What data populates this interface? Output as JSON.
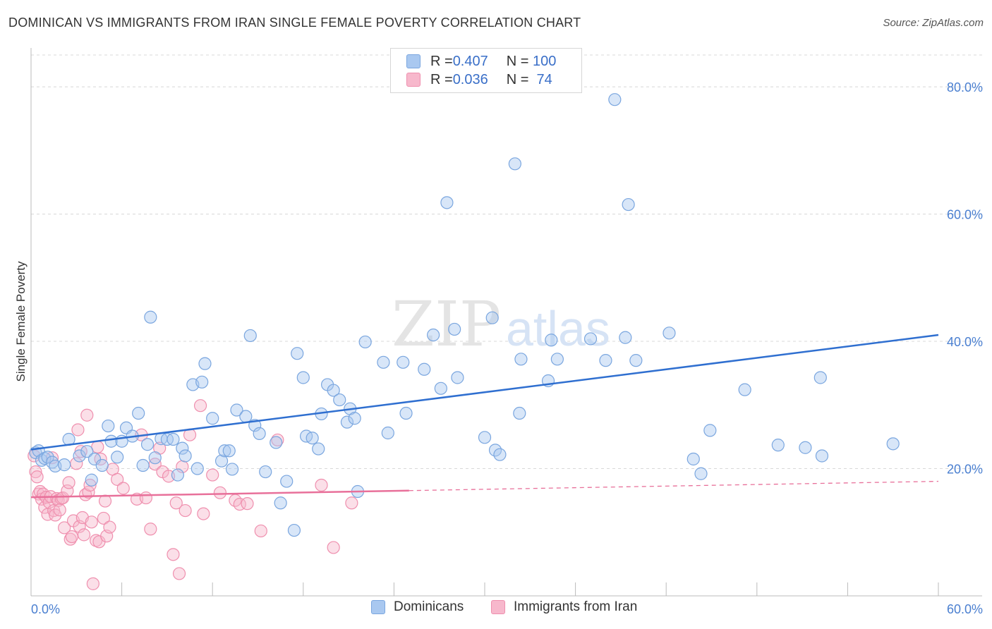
{
  "header": {
    "title": "DOMINICAN VS IMMIGRANTS FROM IRAN SINGLE FEMALE POVERTY CORRELATION CHART",
    "source": "Source: ZipAtlas.com"
  },
  "legend": {
    "rows": [
      {
        "r_label": "R = ",
        "r_value": "0.407",
        "n_label": "N = ",
        "n_value": "100",
        "color": "#a9c8f0"
      },
      {
        "r_label": "R = ",
        "r_value": "0.036",
        "n_label": "N = ",
        "n_value": " 74",
        "color": "#f7b8cc"
      }
    ]
  },
  "watermark": {
    "zip": "ZIP",
    "atlas": "atlas"
  },
  "colors": {
    "blue_fill": "#a9c8f0",
    "blue_stroke": "#7aa6df",
    "blue_line": "#2f6fd0",
    "pink_fill": "#f7b8cc",
    "pink_stroke": "#ef8fae",
    "pink_line": "#e8709a",
    "grid": "#d8d8d8",
    "tick_label": "#4a7fd0"
  },
  "chart_data": {
    "type": "scatter",
    "title": "DOMINICAN VS IMMIGRANTS FROM IRAN SINGLE FEMALE POVERTY CORRELATION CHART",
    "ylabel": "Single Female Poverty",
    "xlim": [
      0,
      60
    ],
    "ylim": [
      0,
      85
    ],
    "x_tick_labels": [
      "0.0%",
      "60.0%"
    ],
    "y_ticks": [
      20,
      40,
      60,
      80
    ],
    "y_tick_labels": [
      "20.0%",
      "40.0%",
      "60.0%",
      "80.0%"
    ],
    "grid": "horizontal dashed",
    "legend_position": "bottom-center",
    "series": [
      {
        "name": "Dominicans",
        "stats": {
          "R": 0.407,
          "N": 100
        },
        "trend": {
          "x": [
            0,
            60
          ],
          "y": [
            23.0,
            41.0
          ],
          "dashed_from": null
        },
        "points": [
          [
            0.3,
            22.5
          ],
          [
            0.5,
            22.8
          ],
          [
            0.7,
            21.3
          ],
          [
            0.9,
            21.6
          ],
          [
            1.1,
            21.8
          ],
          [
            1.4,
            21.0
          ],
          [
            1.6,
            20.4
          ],
          [
            2.2,
            20.6
          ],
          [
            2.5,
            24.6
          ],
          [
            3.2,
            22.0
          ],
          [
            3.7,
            22.7
          ],
          [
            4.0,
            18.2
          ],
          [
            4.2,
            21.5
          ],
          [
            4.7,
            20.5
          ],
          [
            5.1,
            26.7
          ],
          [
            5.3,
            24.3
          ],
          [
            5.7,
            21.8
          ],
          [
            6.0,
            24.3
          ],
          [
            6.3,
            26.4
          ],
          [
            6.7,
            25.1
          ],
          [
            7.1,
            28.7
          ],
          [
            7.4,
            20.5
          ],
          [
            7.7,
            23.8
          ],
          [
            7.9,
            43.8
          ],
          [
            8.2,
            21.7
          ],
          [
            8.6,
            24.7
          ],
          [
            9.0,
            24.6
          ],
          [
            9.4,
            24.6
          ],
          [
            9.7,
            19.0
          ],
          [
            10.0,
            23.2
          ],
          [
            10.2,
            22.0
          ],
          [
            10.7,
            33.2
          ],
          [
            11.0,
            20.0
          ],
          [
            11.3,
            33.6
          ],
          [
            11.5,
            36.5
          ],
          [
            12.0,
            27.9
          ],
          [
            12.6,
            21.2
          ],
          [
            12.8,
            22.8
          ],
          [
            13.1,
            22.8
          ],
          [
            13.3,
            19.9
          ],
          [
            13.6,
            29.2
          ],
          [
            14.2,
            28.2
          ],
          [
            14.5,
            40.9
          ],
          [
            14.8,
            26.8
          ],
          [
            15.1,
            25.5
          ],
          [
            15.5,
            19.5
          ],
          [
            16.2,
            24.1
          ],
          [
            16.5,
            14.6
          ],
          [
            16.9,
            18.0
          ],
          [
            17.4,
            10.3
          ],
          [
            17.6,
            38.1
          ],
          [
            18.0,
            34.3
          ],
          [
            18.2,
            25.1
          ],
          [
            18.6,
            24.8
          ],
          [
            19.0,
            23.1
          ],
          [
            19.2,
            28.6
          ],
          [
            19.6,
            33.2
          ],
          [
            20.0,
            32.3
          ],
          [
            20.4,
            30.8
          ],
          [
            20.9,
            27.3
          ],
          [
            21.1,
            29.4
          ],
          [
            21.4,
            27.9
          ],
          [
            22.1,
            39.9
          ],
          [
            23.3,
            36.7
          ],
          [
            23.6,
            25.6
          ],
          [
            24.6,
            36.7
          ],
          [
            24.8,
            28.7
          ],
          [
            26.0,
            35.6
          ],
          [
            26.6,
            41.0
          ],
          [
            27.1,
            32.6
          ],
          [
            27.5,
            61.8
          ],
          [
            28.0,
            41.9
          ],
          [
            28.2,
            34.3
          ],
          [
            21.6,
            16.4
          ],
          [
            30.0,
            24.9
          ],
          [
            30.5,
            43.7
          ],
          [
            30.7,
            22.9
          ],
          [
            31.0,
            22.2
          ],
          [
            32.0,
            67.9
          ],
          [
            32.3,
            28.7
          ],
          [
            32.4,
            37.2
          ],
          [
            34.2,
            33.8
          ],
          [
            34.4,
            40.2
          ],
          [
            34.8,
            37.2
          ],
          [
            37.0,
            40.4
          ],
          [
            38.0,
            37.0
          ],
          [
            38.6,
            78.0
          ],
          [
            39.3,
            40.6
          ],
          [
            39.5,
            61.5
          ],
          [
            40.0,
            37.0
          ],
          [
            42.2,
            41.3
          ],
          [
            43.8,
            21.5
          ],
          [
            44.3,
            19.2
          ],
          [
            44.9,
            26.0
          ],
          [
            47.2,
            32.4
          ],
          [
            49.4,
            23.7
          ],
          [
            51.2,
            23.3
          ],
          [
            52.2,
            34.3
          ],
          [
            52.3,
            22.0
          ],
          [
            57.0,
            23.9
          ]
        ]
      },
      {
        "name": "Immigrants from Iran",
        "stats": {
          "R": 0.036,
          "N": 74
        },
        "trend": {
          "x": [
            0,
            60
          ],
          "y": [
            15.5,
            18.0
          ],
          "dashed_from": 25
        },
        "points": [
          [
            0.2,
            22.0
          ],
          [
            0.3,
            19.5
          ],
          [
            0.4,
            18.7
          ],
          [
            0.5,
            16.0
          ],
          [
            0.6,
            16.4
          ],
          [
            0.7,
            15.2
          ],
          [
            0.8,
            16.0
          ],
          [
            0.9,
            13.9
          ],
          [
            1.0,
            15.5
          ],
          [
            1.1,
            12.8
          ],
          [
            1.2,
            14.7
          ],
          [
            1.3,
            15.6
          ],
          [
            1.4,
            21.7
          ],
          [
            1.5,
            13.4
          ],
          [
            1.6,
            12.7
          ],
          [
            1.7,
            15.3
          ],
          [
            1.8,
            15.0
          ],
          [
            1.9,
            13.5
          ],
          [
            2.0,
            15.3
          ],
          [
            2.1,
            15.4
          ],
          [
            2.2,
            10.7
          ],
          [
            2.4,
            16.5
          ],
          [
            2.5,
            17.8
          ],
          [
            2.6,
            8.9
          ],
          [
            2.7,
            9.3
          ],
          [
            2.8,
            11.8
          ],
          [
            3.0,
            20.8
          ],
          [
            3.1,
            26.1
          ],
          [
            3.2,
            10.9
          ],
          [
            3.3,
            22.7
          ],
          [
            3.4,
            12.3
          ],
          [
            3.5,
            9.6
          ],
          [
            3.6,
            15.9
          ],
          [
            3.7,
            28.4
          ],
          [
            3.8,
            16.3
          ],
          [
            3.9,
            17.4
          ],
          [
            4.0,
            11.6
          ],
          [
            4.1,
            1.9
          ],
          [
            4.3,
            8.7
          ],
          [
            4.4,
            23.4
          ],
          [
            4.5,
            8.5
          ],
          [
            4.6,
            21.5
          ],
          [
            4.8,
            12.2
          ],
          [
            4.9,
            14.9
          ],
          [
            5.0,
            9.4
          ],
          [
            5.2,
            10.8
          ],
          [
            5.4,
            19.9
          ],
          [
            5.7,
            18.3
          ],
          [
            6.1,
            16.9
          ],
          [
            7.0,
            15.2
          ],
          [
            7.3,
            25.3
          ],
          [
            7.6,
            15.4
          ],
          [
            7.9,
            10.5
          ],
          [
            8.2,
            20.7
          ],
          [
            8.5,
            23.2
          ],
          [
            8.7,
            19.5
          ],
          [
            9.1,
            18.8
          ],
          [
            9.4,
            6.5
          ],
          [
            9.6,
            14.6
          ],
          [
            9.8,
            3.5
          ],
          [
            10.0,
            20.3
          ],
          [
            10.2,
            13.4
          ],
          [
            10.5,
            25.3
          ],
          [
            11.2,
            29.9
          ],
          [
            11.4,
            12.9
          ],
          [
            12.0,
            19.0
          ],
          [
            12.5,
            16.2
          ],
          [
            13.5,
            15.0
          ],
          [
            13.8,
            14.4
          ],
          [
            14.3,
            14.5
          ],
          [
            15.2,
            10.2
          ],
          [
            16.3,
            24.5
          ],
          [
            19.2,
            17.4
          ],
          [
            20.0,
            7.6
          ],
          [
            21.2,
            14.6
          ]
        ]
      }
    ]
  },
  "bottom_legend": {
    "items": [
      {
        "label": "Dominicans"
      },
      {
        "label": "Immigrants from Iran"
      }
    ]
  }
}
